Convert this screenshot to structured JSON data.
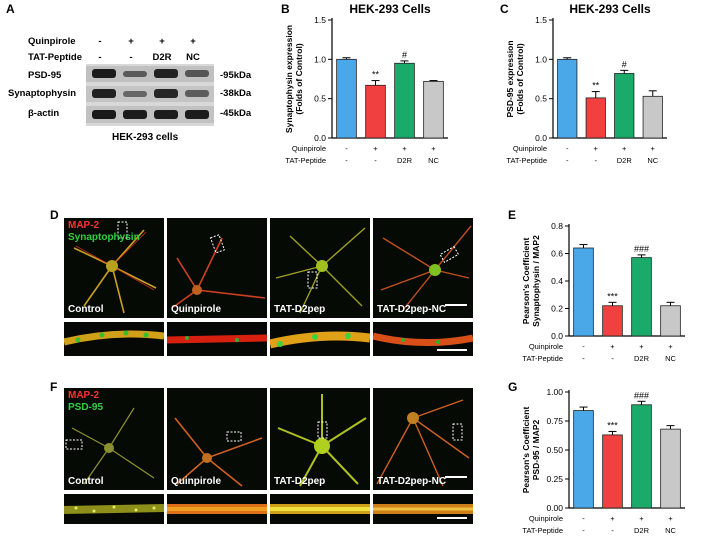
{
  "panel_letters": [
    "A",
    "B",
    "C",
    "D",
    "E",
    "F",
    "G"
  ],
  "blot": {
    "row_headers": [
      "Quinpirole",
      "TAT-Peptide"
    ],
    "quinpirole_marks": [
      "-",
      "+",
      "+",
      "+"
    ],
    "tat_marks": [
      "-",
      "-",
      "D2R",
      "NC"
    ],
    "bands": [
      "PSD-95",
      "Synaptophysin",
      "β-actin"
    ],
    "kda": [
      "-95kDa",
      "-38kDa",
      "-45kDa"
    ],
    "caption": "HEK-293 cells"
  },
  "micro": {
    "d_stain1": "MAP-2",
    "d_stain2": "Synaptophysin",
    "f_stain1": "MAP-2",
    "f_stain2": "PSD-95",
    "conditions": [
      "Control",
      "Quinpirole",
      "TAT-D2pep",
      "TAT-D2pep-NC"
    ]
  },
  "conditions_table": {
    "row1": "Quinpirole",
    "row2": "TAT-Peptide",
    "quin": [
      "-",
      "+",
      "+",
      "+"
    ],
    "tat": [
      "-",
      "-",
      "D2R",
      "NC"
    ]
  },
  "colors": {
    "control": "#4aa8e8",
    "quinpirole": "#f04040",
    "d2r": "#1aaa6a",
    "nc": "#c8c8c8"
  },
  "chart_data": [
    {
      "panel": "B",
      "type": "bar",
      "title": "HEK-293 Cells",
      "ylabel_lines": [
        "Synaptophysin expression",
        "(Folds of Control)"
      ],
      "ylim": [
        0,
        1.5
      ],
      "yticks": [
        "0.0",
        "0.5",
        "1.0",
        "1.5"
      ],
      "values": [
        1.0,
        0.67,
        0.95,
        0.72
      ],
      "errors": [
        0.02,
        0.06,
        0.03,
        0.01
      ],
      "annotations": [
        "",
        "**",
        "#",
        ""
      ]
    },
    {
      "panel": "C",
      "type": "bar",
      "title": "HEK-293 Cells",
      "ylabel_lines": [
        "PSD-95 expression",
        "(Folds of Control)"
      ],
      "ylim": [
        0,
        1.5
      ],
      "yticks": [
        "0.0",
        "0.5",
        "1.0",
        "1.5"
      ],
      "values": [
        1.0,
        0.51,
        0.82,
        0.53
      ],
      "errors": [
        0.02,
        0.08,
        0.04,
        0.07
      ],
      "annotations": [
        "",
        "**",
        "#",
        ""
      ]
    },
    {
      "panel": "E",
      "type": "bar",
      "title": "",
      "ylabel_lines": [
        "Pearson's Coefficient",
        "Synaptophysin / MAP2"
      ],
      "ylim": [
        0,
        0.8
      ],
      "yticks": [
        "0.0",
        "0.2",
        "0.4",
        "0.6",
        "0.8"
      ],
      "values": [
        0.64,
        0.22,
        0.57,
        0.22
      ],
      "errors": [
        0.025,
        0.025,
        0.02,
        0.025
      ],
      "annotations": [
        "",
        "***",
        "###",
        ""
      ]
    },
    {
      "panel": "G",
      "type": "bar",
      "title": "",
      "ylabel_lines": [
        "Pearson's Coefficient",
        "PSD-95 / MAP2"
      ],
      "ylim": [
        0,
        1.0
      ],
      "yticks": [
        "0.00",
        "0.25",
        "0.50",
        "0.75",
        "1.00"
      ],
      "values": [
        0.84,
        0.63,
        0.89,
        0.68
      ],
      "errors": [
        0.03,
        0.03,
        0.03,
        0.03
      ],
      "annotations": [
        "",
        "***",
        "###",
        ""
      ]
    }
  ]
}
